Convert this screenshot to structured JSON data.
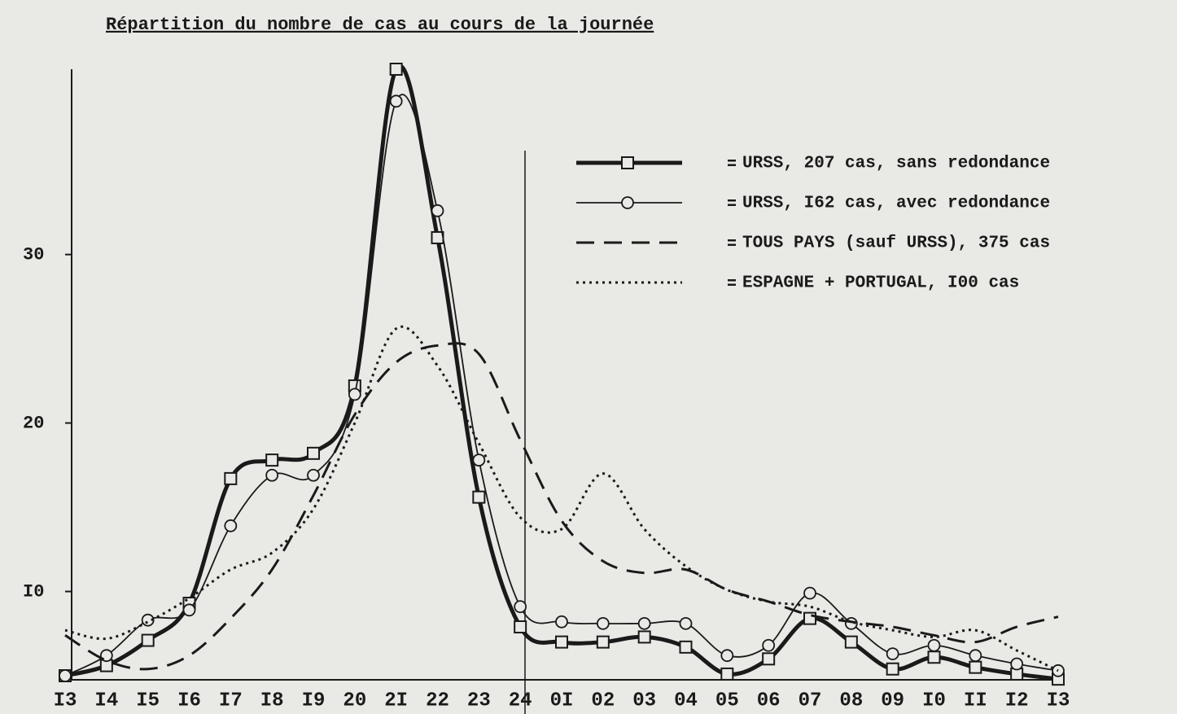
{
  "chart_data": {
    "type": "line",
    "title": "Répartition du nombre de cas au cours de la journée",
    "categories": [
      "I3",
      "I4",
      "I5",
      "I6",
      "I7",
      "I8",
      "I9",
      "20",
      "2I",
      "22",
      "23",
      "24",
      "0I",
      "02",
      "03",
      "04",
      "05",
      "06",
      "07",
      "08",
      "09",
      "I0",
      "II",
      "I2",
      "I3"
    ],
    "ylim": [
      5,
      41
    ],
    "yticks": [
      {
        "value": 10,
        "label": "I0"
      },
      20,
      30
    ],
    "series": [
      {
        "name": "URSS, 207 cas, sans redondance",
        "color": "#1a1a1a",
        "style": "solid",
        "width": 5,
        "marker": "square",
        "values": [
          5,
          5.6,
          7.1,
          9.3,
          16.7,
          17.8,
          18.2,
          22.2,
          41,
          31,
          15.6,
          7.9,
          7.0,
          7.0,
          7.3,
          6.7,
          5.1,
          6.0,
          8.4,
          7.0,
          5.4,
          6.1,
          5.5,
          5.1,
          4.8
        ]
      },
      {
        "name": "URSS, I62 cas, avec redondance",
        "color": "#1a1a1a",
        "style": "solid",
        "width": 1.8,
        "marker": "circle",
        "values": [
          5,
          6.2,
          8.3,
          8.9,
          13.9,
          16.9,
          16.9,
          21.7,
          39.1,
          32.6,
          17.8,
          9.1,
          8.2,
          8.1,
          8.1,
          8.1,
          6.2,
          6.8,
          9.9,
          8.1,
          6.3,
          6.8,
          6.2,
          5.7,
          5.3
        ]
      },
      {
        "name": "TOUS PAYS (sauf URSS), 375 cas",
        "color": "#1a1a1a",
        "style": "dashed",
        "width": 3,
        "marker": "none",
        "values": [
          7.4,
          5.9,
          5.4,
          6.2,
          8.4,
          11.3,
          15.7,
          20.5,
          23.6,
          24.6,
          24.1,
          19.0,
          14.2,
          11.8,
          11.1,
          11.3,
          10.1,
          9.4,
          8.6,
          8.2,
          7.9,
          7.4,
          7.0,
          7.9,
          8.5
        ]
      },
      {
        "name": "ESPAGNE + PORTUGAL, I00 cas",
        "color": "#1a1a1a",
        "style": "dotted",
        "width": 3,
        "marker": "none",
        "values": [
          7.7,
          7.2,
          8.2,
          9.6,
          11.3,
          12.3,
          14.9,
          20.0,
          25.6,
          23.4,
          18.8,
          14.4,
          13.7,
          17.0,
          13.7,
          11.5,
          10.1,
          9.4,
          9.1,
          8.2,
          7.7,
          7.3,
          7.7,
          6.5,
          5.3
        ]
      }
    ]
  }
}
